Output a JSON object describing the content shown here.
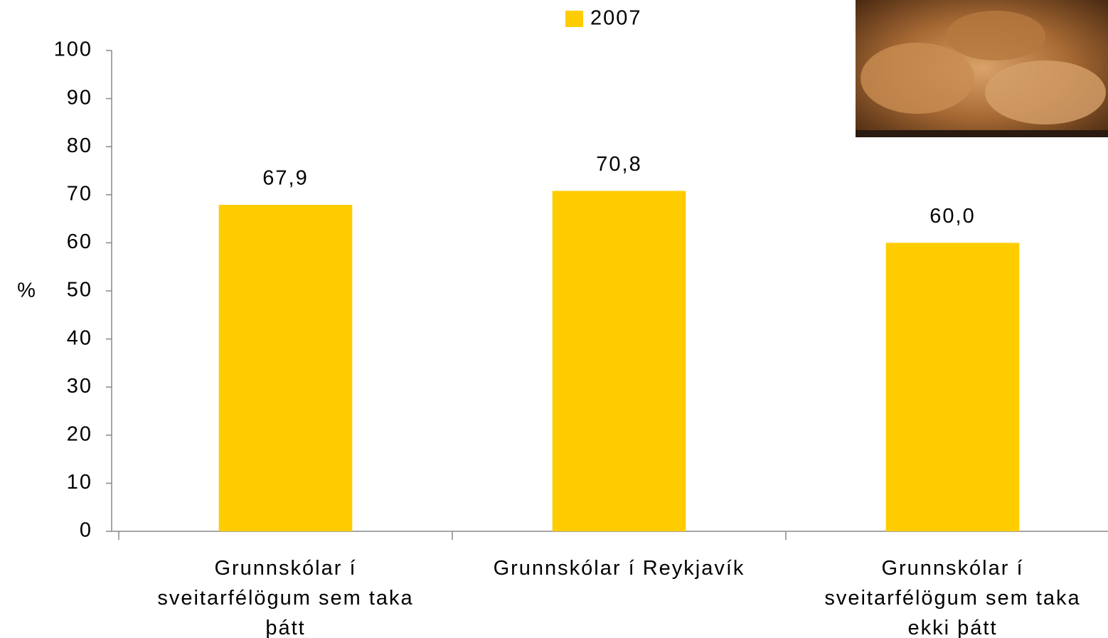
{
  "chart_data": {
    "type": "bar",
    "y_label": "%",
    "categories": [
      "Grunnskólar í sveitarfélögum sem taka þátt",
      "Grunnskólar í Reykjavík",
      "Grunnskólar í sveitarfélögum sem taka ekki þátt"
    ],
    "series": [
      {
        "name": "2007",
        "color": "#ffcc00",
        "values": [
          67.9,
          70.8,
          60.0
        ],
        "value_labels": [
          "67,9",
          "70,8",
          "60,0"
        ]
      }
    ],
    "ylim": [
      0,
      100
    ],
    "yticks": [
      0,
      10,
      20,
      30,
      40,
      50,
      60,
      70,
      80,
      90,
      100
    ],
    "legend": "top"
  }
}
